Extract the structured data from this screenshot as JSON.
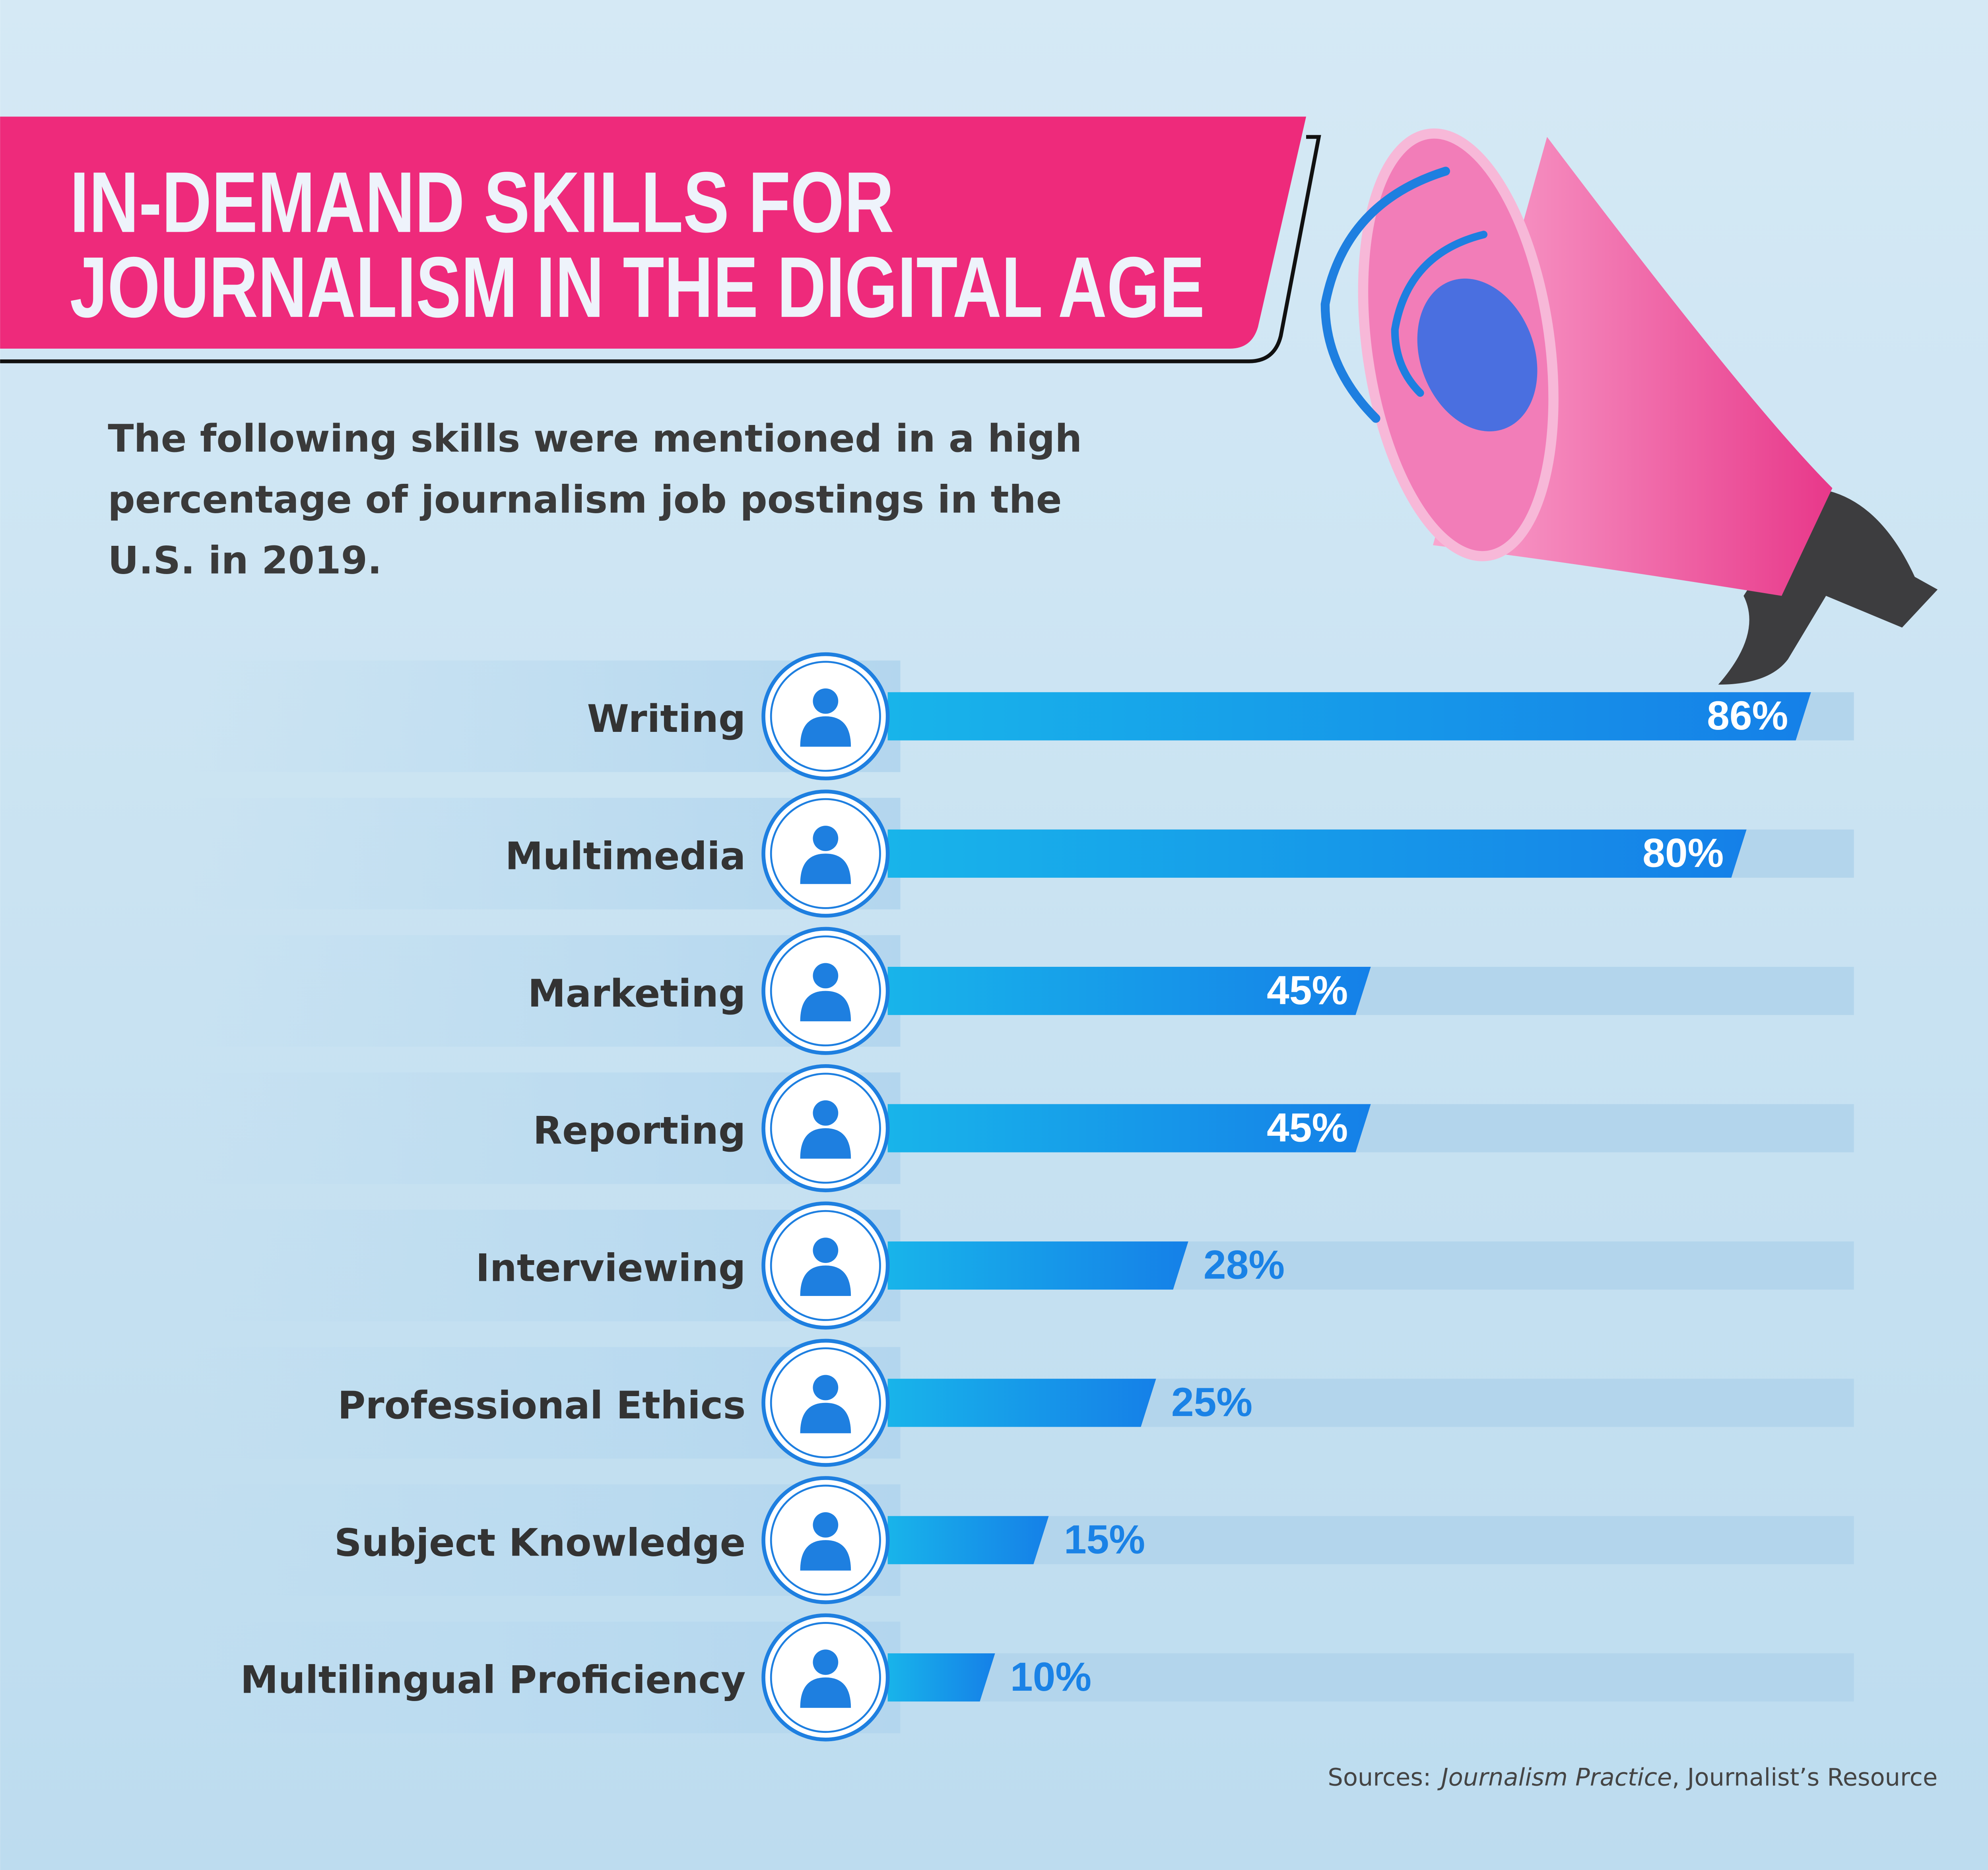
{
  "chart_data": {
    "type": "bar",
    "orientation": "horizontal",
    "title": [
      "IN-DEMAND SKILLS FOR",
      "JOURNALISM IN THE DIGITAL AGE"
    ],
    "subtitle": [
      "The following skills were mentioned in a high",
      "percentage of journalism job postings in the",
      "U.S. in 2019."
    ],
    "categories": [
      "Writing",
      "Multimedia",
      "Marketing",
      "Reporting",
      "Interviewing",
      "Professional Ethics",
      "Subject Knowledge",
      "Multilingual Proficiency"
    ],
    "values": [
      86,
      80,
      45,
      45,
      28,
      25,
      15,
      10
    ],
    "value_labels": [
      "86%",
      "80%",
      "45%",
      "45%",
      "28%",
      "25%",
      "15%",
      "10%"
    ],
    "xlim": [
      0,
      90
    ],
    "color": "#1580e8",
    "source": [
      "Sources:",
      "Journalism Practice",
      ", Journalist’s Resource"
    ]
  }
}
